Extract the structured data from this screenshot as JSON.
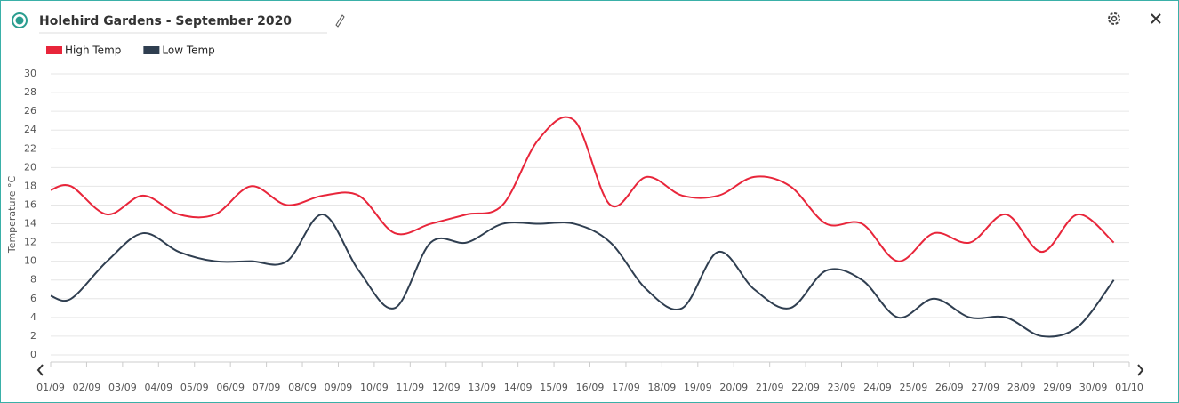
{
  "header": {
    "title": "Holehird Gardens - September 2020"
  },
  "chart_data": {
    "type": "line",
    "y_label": "Temperature °C",
    "x": [
      0,
      0.57,
      1.57,
      2.57,
      3.57,
      4.57,
      5.57,
      6.57,
      7.57,
      8.57,
      9.57,
      10.57,
      11.57,
      12.57,
      13.57,
      14.57,
      15.57,
      16.57,
      17.57,
      18.57,
      19.57,
      20.57,
      21.57,
      22.57,
      23.57,
      24.57,
      25.57,
      26.57,
      27.57,
      28.57,
      29.57
    ],
    "series": [
      {
        "name": "High Temp",
        "color": "#e8253a",
        "values": [
          17.6,
          18,
          15,
          17,
          15,
          15,
          18,
          16,
          17,
          17,
          13,
          14,
          15,
          16,
          23,
          25,
          16,
          19,
          17,
          17,
          19,
          18,
          14,
          14,
          10,
          13,
          12,
          15,
          11,
          15,
          12
        ]
      },
      {
        "name": "Low Temp",
        "color": "#2f3e50",
        "values": [
          6.3,
          6,
          10,
          13,
          11,
          10,
          10,
          10,
          15,
          9,
          5,
          12,
          12,
          14,
          14,
          14,
          12,
          7,
          5,
          11,
          7,
          5,
          9,
          8,
          4,
          6,
          4,
          4,
          2,
          3,
          8
        ]
      }
    ],
    "xlim": [
      0,
      30
    ],
    "xticks": [
      {
        "value": 0,
        "label": "01/09"
      },
      {
        "value": 1,
        "label": "02/09"
      },
      {
        "value": 2,
        "label": "03/09"
      },
      {
        "value": 3,
        "label": "04/09"
      },
      {
        "value": 4,
        "label": "05/09"
      },
      {
        "value": 5,
        "label": "06/09"
      },
      {
        "value": 6,
        "label": "07/09"
      },
      {
        "value": 7,
        "label": "08/09"
      },
      {
        "value": 8,
        "label": "09/09"
      },
      {
        "value": 9,
        "label": "10/09"
      },
      {
        "value": 10,
        "label": "11/09"
      },
      {
        "value": 11,
        "label": "12/09"
      },
      {
        "value": 12,
        "label": "13/09"
      },
      {
        "value": 13,
        "label": "14/09"
      },
      {
        "value": 14,
        "label": "15/09"
      },
      {
        "value": 15,
        "label": "16/09"
      },
      {
        "value": 16,
        "label": "17/09"
      },
      {
        "value": 17,
        "label": "18/09"
      },
      {
        "value": 18,
        "label": "19/09"
      },
      {
        "value": 19,
        "label": "20/09"
      },
      {
        "value": 20,
        "label": "21/09"
      },
      {
        "value": 21,
        "label": "22/09"
      },
      {
        "value": 22,
        "label": "23/09"
      },
      {
        "value": 23,
        "label": "24/09"
      },
      {
        "value": 24,
        "label": "25/09"
      },
      {
        "value": 25,
        "label": "26/09"
      },
      {
        "value": 26,
        "label": "27/09"
      },
      {
        "value": 27,
        "label": "28/09"
      },
      {
        "value": 28,
        "label": "29/09"
      },
      {
        "value": 29,
        "label": "30/09"
      },
      {
        "value": 30,
        "label": "01/10"
      }
    ],
    "ylim": [
      0,
      30
    ],
    "yticks": [
      0,
      2,
      4,
      6,
      8,
      10,
      12,
      14,
      16,
      18,
      20,
      22,
      24,
      26,
      28,
      30
    ],
    "grid": true
  }
}
